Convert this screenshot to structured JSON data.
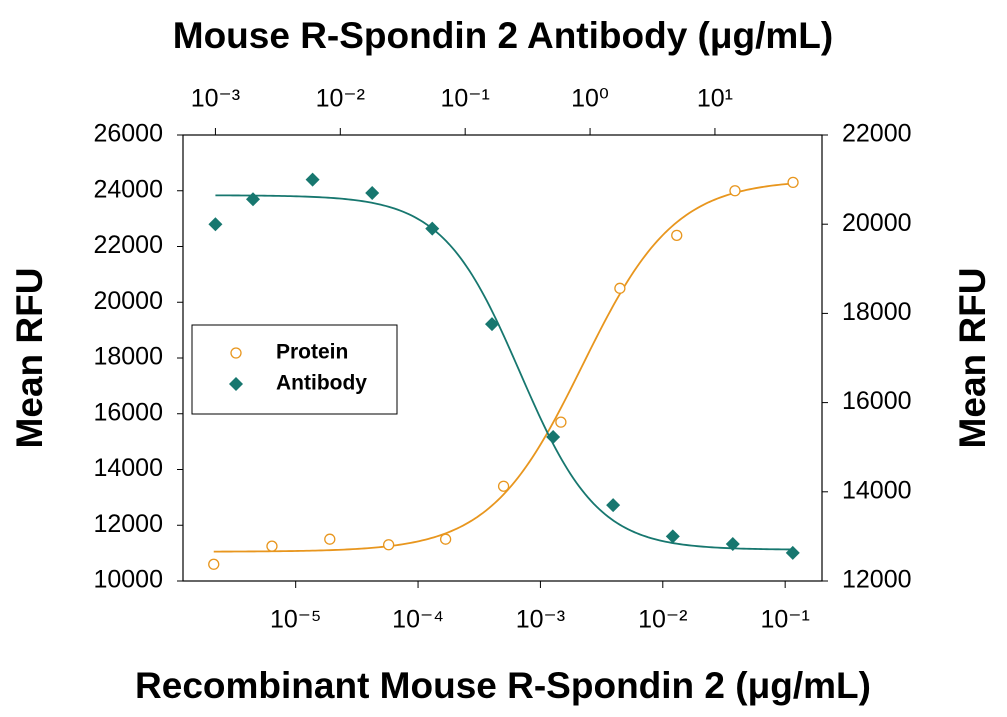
{
  "chart_data": {
    "type": "scatter",
    "title": "Mouse R-Spondin 2 Antibody (μg/mL)",
    "xlabel": "Recombinant Mouse R-Spondin 2 (μg/mL)",
    "ylabel": "Mean RFU",
    "y2label": "Mean RFU",
    "xscale": "log",
    "x2scale": "log",
    "xlim": [
      1.2e-06,
      0.2
    ],
    "xticks": [
      {
        "value": 1e-05,
        "label": "10⁻⁵"
      },
      {
        "value": 0.0001,
        "label": "10⁻⁴"
      },
      {
        "value": 0.001,
        "label": "10⁻³"
      },
      {
        "value": 0.01,
        "label": "10⁻²"
      },
      {
        "value": 0.1,
        "label": "10⁻¹"
      }
    ],
    "x2lim": [
      0.00055,
      72
    ],
    "x2ticks": [
      {
        "value": 0.001,
        "label": "10⁻³"
      },
      {
        "value": 0.01,
        "label": "10⁻²"
      },
      {
        "value": 0.1,
        "label": "10⁻¹"
      },
      {
        "value": 1,
        "label": "10⁰"
      },
      {
        "value": 10,
        "label": "10¹"
      }
    ],
    "ylim": [
      10000,
      26000
    ],
    "yticks": [
      10000,
      12000,
      14000,
      16000,
      18000,
      20000,
      22000,
      24000,
      26000
    ],
    "y2lim": [
      12000,
      22000
    ],
    "y2ticks": [
      12000,
      14000,
      16000,
      18000,
      20000,
      22000
    ],
    "legend": "center left",
    "series": [
      {
        "name": "Protein",
        "color": "#e8961e",
        "marker": "open-circle",
        "axis": "y",
        "xaxis": "x",
        "x": [
          2.14e-06,
          6.4e-06,
          1.9e-05,
          5.75e-05,
          0.000168,
          0.0005,
          0.00147,
          0.00446,
          0.013,
          0.0389,
          0.116
        ],
        "values": [
          10600,
          11250,
          11500,
          11300,
          11500,
          13400,
          15700,
          20500,
          22400,
          24000,
          24300
        ],
        "fit": {
          "bottom": 11050,
          "top": 24400,
          "ec50": 0.0022,
          "hill": 1.15
        }
      },
      {
        "name": "Antibody",
        "color": "#17776f",
        "marker": "diamond",
        "axis": "y2",
        "xaxis": "x2",
        "x": [
          0.001,
          0.002,
          0.006,
          0.018,
          0.0545,
          0.164,
          0.506,
          1.53,
          4.6,
          13.9,
          42
        ],
        "values": [
          20000,
          20560,
          21000,
          20700,
          19900,
          17760,
          15230,
          13700,
          13000,
          12830,
          12630
        ],
        "fit": {
          "bottom": 12700,
          "top": 20650,
          "ec50": 0.275,
          "hill": -1.4
        }
      }
    ]
  }
}
